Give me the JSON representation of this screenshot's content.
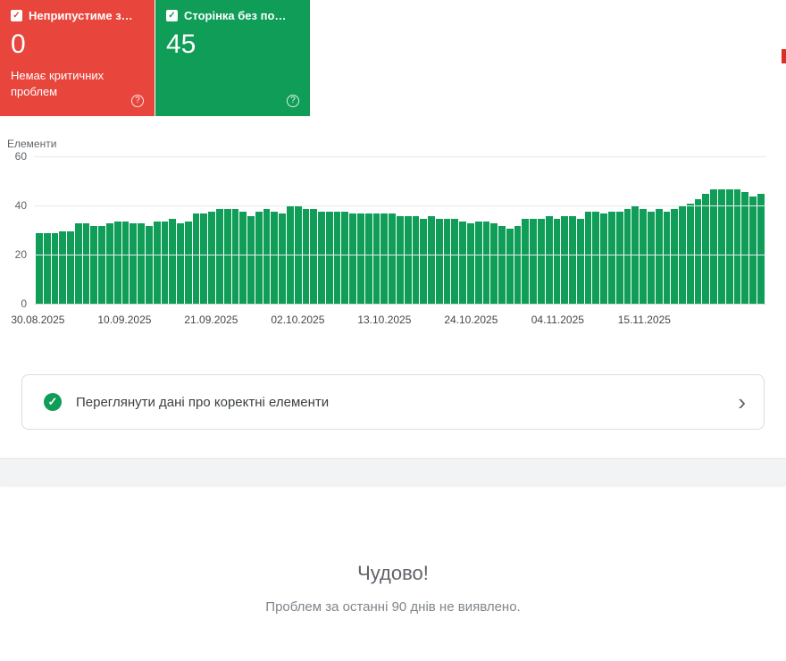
{
  "cards": [
    {
      "label": "Неприпустиме з…",
      "value": "0",
      "subtitle": "Немає критичних проблем",
      "color": "#e8453c",
      "help": "?"
    },
    {
      "label": "Сторінка без по…",
      "value": "45",
      "subtitle": "",
      "color": "#0f9d58",
      "help": "?"
    }
  ],
  "chart_data": {
    "type": "bar",
    "title": "",
    "ylabel": "Елементи",
    "xlabel": "",
    "ylim": [
      0,
      60
    ],
    "yticks": [
      0,
      20,
      40,
      60
    ],
    "grid": true,
    "bar_color": "#0f9d58",
    "x_unit": "days",
    "x_start": "30.08.2025",
    "xticks": [
      {
        "label": "30.08.2025",
        "index": 0
      },
      {
        "label": "10.09.2025",
        "index": 11
      },
      {
        "label": "21.09.2025",
        "index": 22
      },
      {
        "label": "02.10.2025",
        "index": 33
      },
      {
        "label": "13.10.2025",
        "index": 44
      },
      {
        "label": "24.10.2025",
        "index": 55
      },
      {
        "label": "04.11.2025",
        "index": 66
      },
      {
        "label": "15.11.2025",
        "index": 77
      }
    ],
    "values": [
      29,
      29,
      29,
      30,
      30,
      33,
      33,
      32,
      32,
      33,
      34,
      34,
      33,
      33,
      32,
      34,
      34,
      35,
      33,
      34,
      37,
      37,
      38,
      39,
      39,
      39,
      38,
      36,
      38,
      39,
      38,
      37,
      40,
      40,
      39,
      39,
      38,
      38,
      38,
      38,
      37,
      37,
      37,
      37,
      37,
      37,
      36,
      36,
      36,
      35,
      36,
      35,
      35,
      35,
      34,
      33,
      34,
      34,
      33,
      32,
      31,
      32,
      35,
      35,
      35,
      36,
      35,
      36,
      36,
      35,
      38,
      38,
      37,
      38,
      38,
      39,
      40,
      39,
      38,
      39,
      38,
      39,
      40,
      41,
      43,
      45,
      47,
      47,
      47,
      47,
      46,
      44,
      45
    ]
  },
  "banner": {
    "text": "Переглянути дані про коректні елементи",
    "chevron": "›",
    "check": "✓"
  },
  "footer": {
    "title": "Чудово!",
    "subtitle": "Проблем за останні 90 днів не виявлено."
  },
  "misc": {
    "checkbox_glyph": "✓",
    "scroll_marker_color": "#d93025"
  }
}
